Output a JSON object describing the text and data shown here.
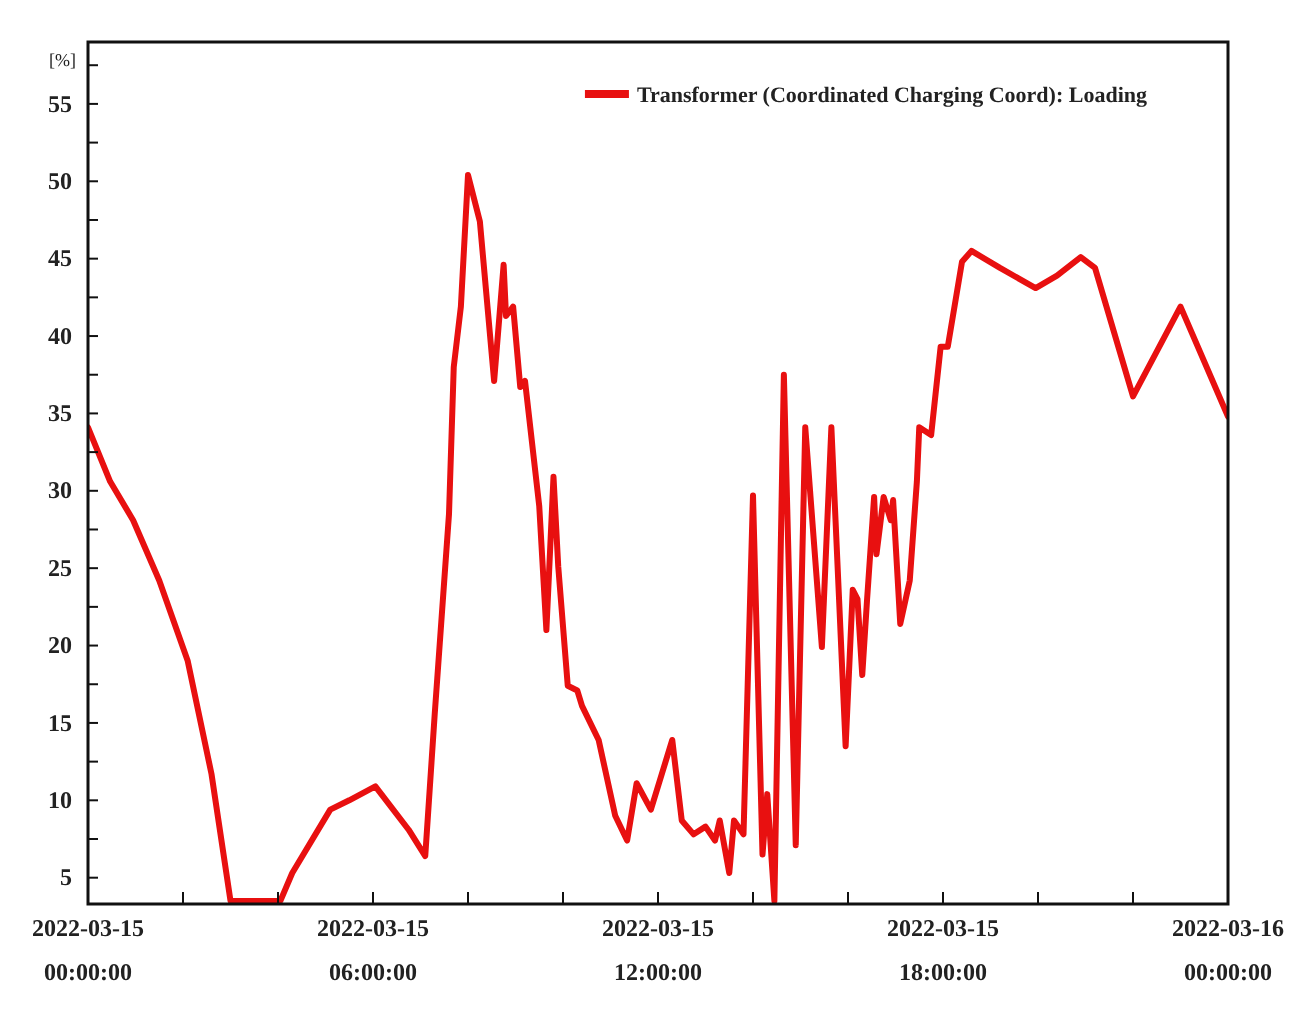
{
  "chart_data": {
    "type": "line",
    "ylabel": "[%]",
    "legend": "top right",
    "line_style": "solid",
    "marker": "none",
    "grid": false,
    "xlim": [
      "2022-03-15T00:00",
      "2022-03-16T00:00"
    ],
    "xticks": [
      {
        "value": "2022-03-15T00:00",
        "label": "2022-03-15\n00:00:00"
      },
      {
        "value": "2022-03-15T02:00",
        "label": null
      },
      {
        "value": "2022-03-15T04:00",
        "label": null
      },
      {
        "value": "2022-03-15T06:00",
        "label": "2022-03-15\n06:00:00"
      },
      {
        "value": "2022-03-15T08:00",
        "label": null
      },
      {
        "value": "2022-03-15T10:00",
        "label": null
      },
      {
        "value": "2022-03-15T12:00",
        "label": "2022-03-15\n12:00:00"
      },
      {
        "value": "2022-03-15T14:00",
        "label": null
      },
      {
        "value": "2022-03-15T16:00",
        "label": null
      },
      {
        "value": "2022-03-15T18:00",
        "label": "2022-03-15\n18:00:00"
      },
      {
        "value": "2022-03-15T20:00",
        "label": null
      },
      {
        "value": "2022-03-15T22:00",
        "label": null
      },
      {
        "value": "2022-03-16T00:00",
        "label": "2022-03-16\n00:00:00"
      }
    ],
    "ylim": [
      3.3,
      59
    ],
    "yticks": [
      5,
      {
        "value": 7.5,
        "label": null
      },
      10,
      {
        "value": 12.5,
        "label": null
      },
      15,
      {
        "value": 17.5,
        "label": null
      },
      20,
      {
        "value": 22.5,
        "label": null
      },
      25,
      {
        "value": 27.5,
        "label": null
      },
      30,
      {
        "value": 32.5,
        "label": null
      },
      35,
      {
        "value": 37.5,
        "label": null
      },
      40,
      {
        "value": 42.5,
        "label": null
      },
      45,
      {
        "value": 47.5,
        "label": null
      },
      50,
      {
        "value": 52.5,
        "label": null
      },
      55,
      {
        "value": 57.5,
        "label": null
      }
    ],
    "series": [
      {
        "name": "Transformer (Coordinated Charging Coord): Loading",
        "color": "#e81010",
        "x": [
          "2022-03-15T00:00",
          "2022-03-15T00:28",
          "2022-03-15T00:57",
          "2022-03-15T01:30",
          "2022-03-15T02:06",
          "2022-03-15T02:36",
          "2022-03-15T03:00",
          "2022-03-15T04:03",
          "2022-03-15T04:18",
          "2022-03-15T05:06",
          "2022-03-15T05:30",
          "2022-03-15T06:03",
          "2022-03-15T06:45",
          "2022-03-15T07:06",
          "2022-03-15T07:18",
          "2022-03-15T07:36",
          "2022-03-15T07:42",
          "2022-03-15T07:51",
          "2022-03-15T08:00",
          "2022-03-15T08:15",
          "2022-03-15T08:33",
          "2022-03-15T08:45",
          "2022-03-15T08:48",
          "2022-03-15T08:57",
          "2022-03-15T09:06",
          "2022-03-15T09:12",
          "2022-03-15T09:30",
          "2022-03-15T09:39",
          "2022-03-15T09:48",
          "2022-03-15T09:54",
          "2022-03-15T10:06",
          "2022-03-15T10:18",
          "2022-03-15T10:24",
          "2022-03-15T10:45",
          "2022-03-15T11:06",
          "2022-03-15T11:21",
          "2022-03-15T11:33",
          "2022-03-15T11:51",
          "2022-03-15T12:18",
          "2022-03-15T12:30",
          "2022-03-15T12:45",
          "2022-03-15T13:00",
          "2022-03-15T13:12",
          "2022-03-15T13:18",
          "2022-03-15T13:30",
          "2022-03-15T13:36",
          "2022-03-15T13:48",
          "2022-03-15T14:00",
          "2022-03-15T14:12",
          "2022-03-15T14:18",
          "2022-03-15T14:27",
          "2022-03-15T14:39",
          "2022-03-15T14:54",
          "2022-03-15T15:06",
          "2022-03-15T15:27",
          "2022-03-15T15:39",
          "2022-03-15T15:57",
          "2022-03-15T16:06",
          "2022-03-15T16:12",
          "2022-03-15T16:18",
          "2022-03-15T16:24",
          "2022-03-15T16:33",
          "2022-03-15T16:36",
          "2022-03-15T16:45",
          "2022-03-15T16:54",
          "2022-03-15T16:57",
          "2022-03-15T17:06",
          "2022-03-15T17:18",
          "2022-03-15T17:27",
          "2022-03-15T17:30",
          "2022-03-15T17:45",
          "2022-03-15T17:57",
          "2022-03-15T18:06",
          "2022-03-15T18:24",
          "2022-03-15T18:36",
          "2022-03-15T19:12",
          "2022-03-15T19:57",
          "2022-03-15T20:24",
          "2022-03-15T20:54",
          "2022-03-15T21:12",
          "2022-03-15T22:00",
          "2022-03-15T23:00",
          "2022-03-16T00:00"
        ],
        "values": [
          34.1,
          30.6,
          28.1,
          24.2,
          19.0,
          11.7,
          3.5,
          3.5,
          5.3,
          9.4,
          10.0,
          10.9,
          8.1,
          6.4,
          15.6,
          28.5,
          38.0,
          41.9,
          50.4,
          47.4,
          37.1,
          44.6,
          41.3,
          41.9,
          36.7,
          37.1,
          29.0,
          21.0,
          30.9,
          25.1,
          17.4,
          17.1,
          16.1,
          13.9,
          9.0,
          7.4,
          11.1,
          9.4,
          13.9,
          8.7,
          7.8,
          8.3,
          7.4,
          8.7,
          5.3,
          8.7,
          7.8,
          29.7,
          6.5,
          10.4,
          3.5,
          37.5,
          7.1,
          34.1,
          19.9,
          34.1,
          13.5,
          23.6,
          23.0,
          18.1,
          22.9,
          29.6,
          25.9,
          29.6,
          28.1,
          29.4,
          21.4,
          24.2,
          30.6,
          34.1,
          33.6,
          39.3,
          39.3,
          44.8,
          45.5,
          44.4,
          43.1,
          43.9,
          45.1,
          44.4,
          36.1,
          41.9,
          34.8
        ]
      }
    ]
  }
}
